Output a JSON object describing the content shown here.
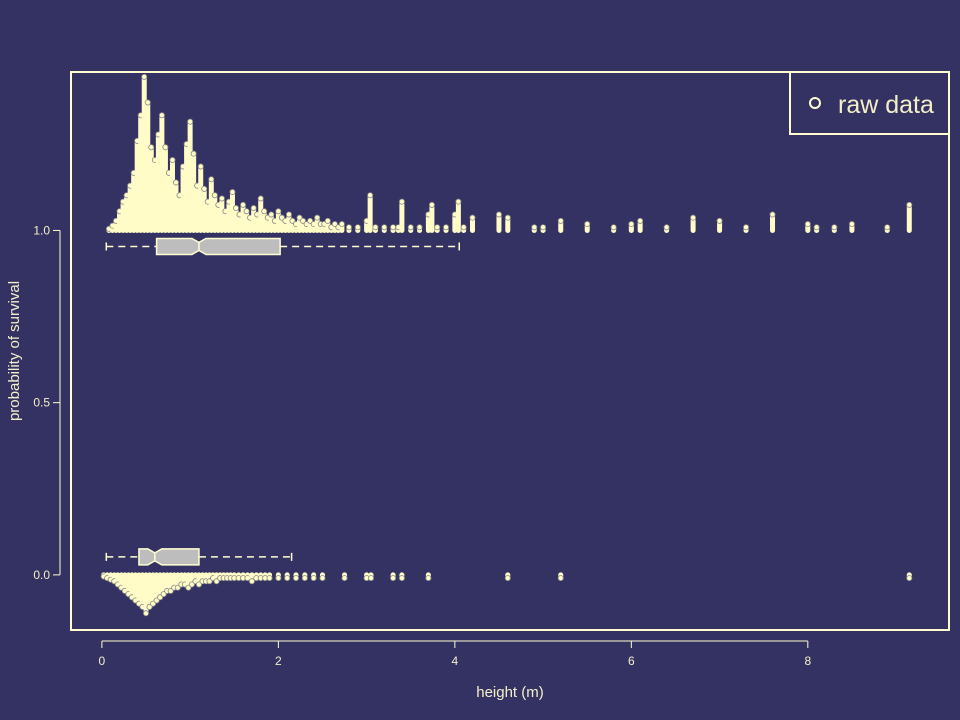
{
  "colors": {
    "background": "#343263",
    "foreground": "#fffecf",
    "box_fill": "#bdbdbd",
    "point_fill": "#fffcc8"
  },
  "chart_data": {
    "type": "scatter",
    "xlabel": "height (m)",
    "ylabel": "probability of survival",
    "xlim": [
      -0.35,
      9.6
    ],
    "ylim": [
      -0.16,
      1.46
    ],
    "x_ticks": [
      0,
      2,
      4,
      6,
      8
    ],
    "x_tick_labels": [
      "0",
      "2",
      "4",
      "6",
      "8"
    ],
    "y_ticks": [
      0,
      0.5,
      1
    ],
    "y_tick_labels": [
      "0.0",
      "0.5",
      "1.0"
    ],
    "legend": {
      "label": "raw data",
      "position": "top-right"
    },
    "grid": false,
    "series": [
      {
        "outcome": 1,
        "stacks": [
          [
            0.08,
            0.5
          ],
          [
            0.12,
            1.5
          ],
          [
            0.16,
            3
          ],
          [
            0.2,
            6
          ],
          [
            0.24,
            9
          ],
          [
            0.28,
            11
          ],
          [
            0.32,
            14
          ],
          [
            0.36,
            18
          ],
          [
            0.4,
            28
          ],
          [
            0.44,
            36
          ],
          [
            0.48,
            48
          ],
          [
            0.52,
            40
          ],
          [
            0.56,
            26
          ],
          [
            0.6,
            22
          ],
          [
            0.64,
            30
          ],
          [
            0.68,
            36
          ],
          [
            0.72,
            26
          ],
          [
            0.76,
            18
          ],
          [
            0.8,
            22
          ],
          [
            0.84,
            15
          ],
          [
            0.88,
            11
          ],
          [
            0.92,
            20
          ],
          [
            0.96,
            27
          ],
          [
            1.0,
            34
          ],
          [
            1.04,
            24
          ],
          [
            1.08,
            14
          ],
          [
            1.12,
            20
          ],
          [
            1.16,
            13
          ],
          [
            1.2,
            9
          ],
          [
            1.24,
            16
          ],
          [
            1.28,
            11
          ],
          [
            1.32,
            8
          ],
          [
            1.36,
            10
          ],
          [
            1.4,
            6
          ],
          [
            1.44,
            9
          ],
          [
            1.48,
            12
          ],
          [
            1.52,
            7
          ],
          [
            1.56,
            5
          ],
          [
            1.6,
            8
          ],
          [
            1.64,
            6
          ],
          [
            1.68,
            4
          ],
          [
            1.72,
            7
          ],
          [
            1.76,
            5
          ],
          [
            1.8,
            10
          ],
          [
            1.84,
            6
          ],
          [
            1.88,
            4
          ],
          [
            1.92,
            5
          ],
          [
            1.96,
            3
          ],
          [
            2.0,
            6
          ],
          [
            2.04,
            4
          ],
          [
            2.08,
            3
          ],
          [
            2.12,
            5
          ],
          [
            2.16,
            3
          ],
          [
            2.2,
            2
          ],
          [
            2.24,
            4
          ],
          [
            2.28,
            3
          ],
          [
            2.32,
            2
          ],
          [
            2.36,
            3
          ],
          [
            2.4,
            2
          ],
          [
            2.44,
            4
          ],
          [
            2.48,
            2
          ],
          [
            2.52,
            2
          ],
          [
            2.56,
            3
          ],
          [
            2.6,
            1
          ],
          [
            2.64,
            2
          ],
          [
            2.68,
            1
          ],
          [
            2.72,
            2
          ],
          [
            2.8,
            1
          ],
          [
            2.9,
            1
          ],
          [
            3.0,
            3
          ],
          [
            3.04,
            11
          ],
          [
            3.1,
            1
          ],
          [
            3.2,
            1
          ],
          [
            3.3,
            1
          ],
          [
            3.36,
            1
          ],
          [
            3.4,
            9
          ],
          [
            3.5,
            1
          ],
          [
            3.6,
            1
          ],
          [
            3.7,
            5
          ],
          [
            3.74,
            8
          ],
          [
            3.8,
            1
          ],
          [
            3.9,
            1
          ],
          [
            4.0,
            5
          ],
          [
            4.04,
            9
          ],
          [
            4.1,
            1
          ],
          [
            4.2,
            4
          ],
          [
            4.5,
            5
          ],
          [
            4.6,
            4
          ],
          [
            4.9,
            1
          ],
          [
            5.0,
            1
          ],
          [
            5.2,
            3
          ],
          [
            5.5,
            2
          ],
          [
            5.8,
            1
          ],
          [
            6.0,
            2
          ],
          [
            6.1,
            3
          ],
          [
            6.4,
            1
          ],
          [
            6.7,
            4
          ],
          [
            7.0,
            3
          ],
          [
            7.3,
            1
          ],
          [
            7.6,
            5
          ],
          [
            8.0,
            2
          ],
          [
            8.1,
            1
          ],
          [
            8.3,
            1
          ],
          [
            8.5,
            2
          ],
          [
            8.9,
            1
          ],
          [
            9.15,
            8
          ]
        ],
        "boxplot": {
          "whisker_low": 0.05,
          "q1": 0.62,
          "median": 1.1,
          "q3": 2.02,
          "whisker_high": 4.05
        }
      },
      {
        "outcome": 0,
        "stacks": [
          [
            0.02,
            0.5
          ],
          [
            0.06,
            1
          ],
          [
            0.1,
            1.5
          ],
          [
            0.14,
            2
          ],
          [
            0.18,
            3
          ],
          [
            0.22,
            4
          ],
          [
            0.26,
            5
          ],
          [
            0.3,
            6
          ],
          [
            0.34,
            7
          ],
          [
            0.38,
            8
          ],
          [
            0.42,
            9
          ],
          [
            0.46,
            10
          ],
          [
            0.5,
            12
          ],
          [
            0.54,
            10
          ],
          [
            0.58,
            9
          ],
          [
            0.62,
            8
          ],
          [
            0.66,
            7
          ],
          [
            0.7,
            6
          ],
          [
            0.74,
            5
          ],
          [
            0.78,
            5
          ],
          [
            0.82,
            4
          ],
          [
            0.86,
            4
          ],
          [
            0.9,
            3
          ],
          [
            0.94,
            3
          ],
          [
            0.98,
            4
          ],
          [
            1.02,
            3
          ],
          [
            1.06,
            2
          ],
          [
            1.1,
            3
          ],
          [
            1.14,
            2
          ],
          [
            1.18,
            2
          ],
          [
            1.22,
            2
          ],
          [
            1.26,
            1
          ],
          [
            1.3,
            2
          ],
          [
            1.34,
            1
          ],
          [
            1.38,
            1
          ],
          [
            1.42,
            1
          ],
          [
            1.46,
            1
          ],
          [
            1.5,
            1
          ],
          [
            1.55,
            1
          ],
          [
            1.6,
            1
          ],
          [
            1.65,
            1
          ],
          [
            1.7,
            2
          ],
          [
            1.75,
            1
          ],
          [
            1.8,
            1
          ],
          [
            1.85,
            1
          ],
          [
            1.9,
            1
          ],
          [
            2.0,
            1
          ],
          [
            2.1,
            1
          ],
          [
            2.2,
            1
          ],
          [
            2.3,
            1
          ],
          [
            2.4,
            1
          ],
          [
            2.5,
            1
          ],
          [
            2.75,
            1
          ],
          [
            3.0,
            1
          ],
          [
            3.05,
            1
          ],
          [
            3.3,
            1
          ],
          [
            3.4,
            1
          ],
          [
            3.7,
            1
          ],
          [
            4.6,
            1
          ],
          [
            5.2,
            1
          ],
          [
            9.15,
            1
          ]
        ],
        "boxplot": {
          "whisker_low": 0.05,
          "q1": 0.42,
          "median": 0.6,
          "q3": 1.1,
          "whisker_high": 2.15
        }
      }
    ]
  }
}
